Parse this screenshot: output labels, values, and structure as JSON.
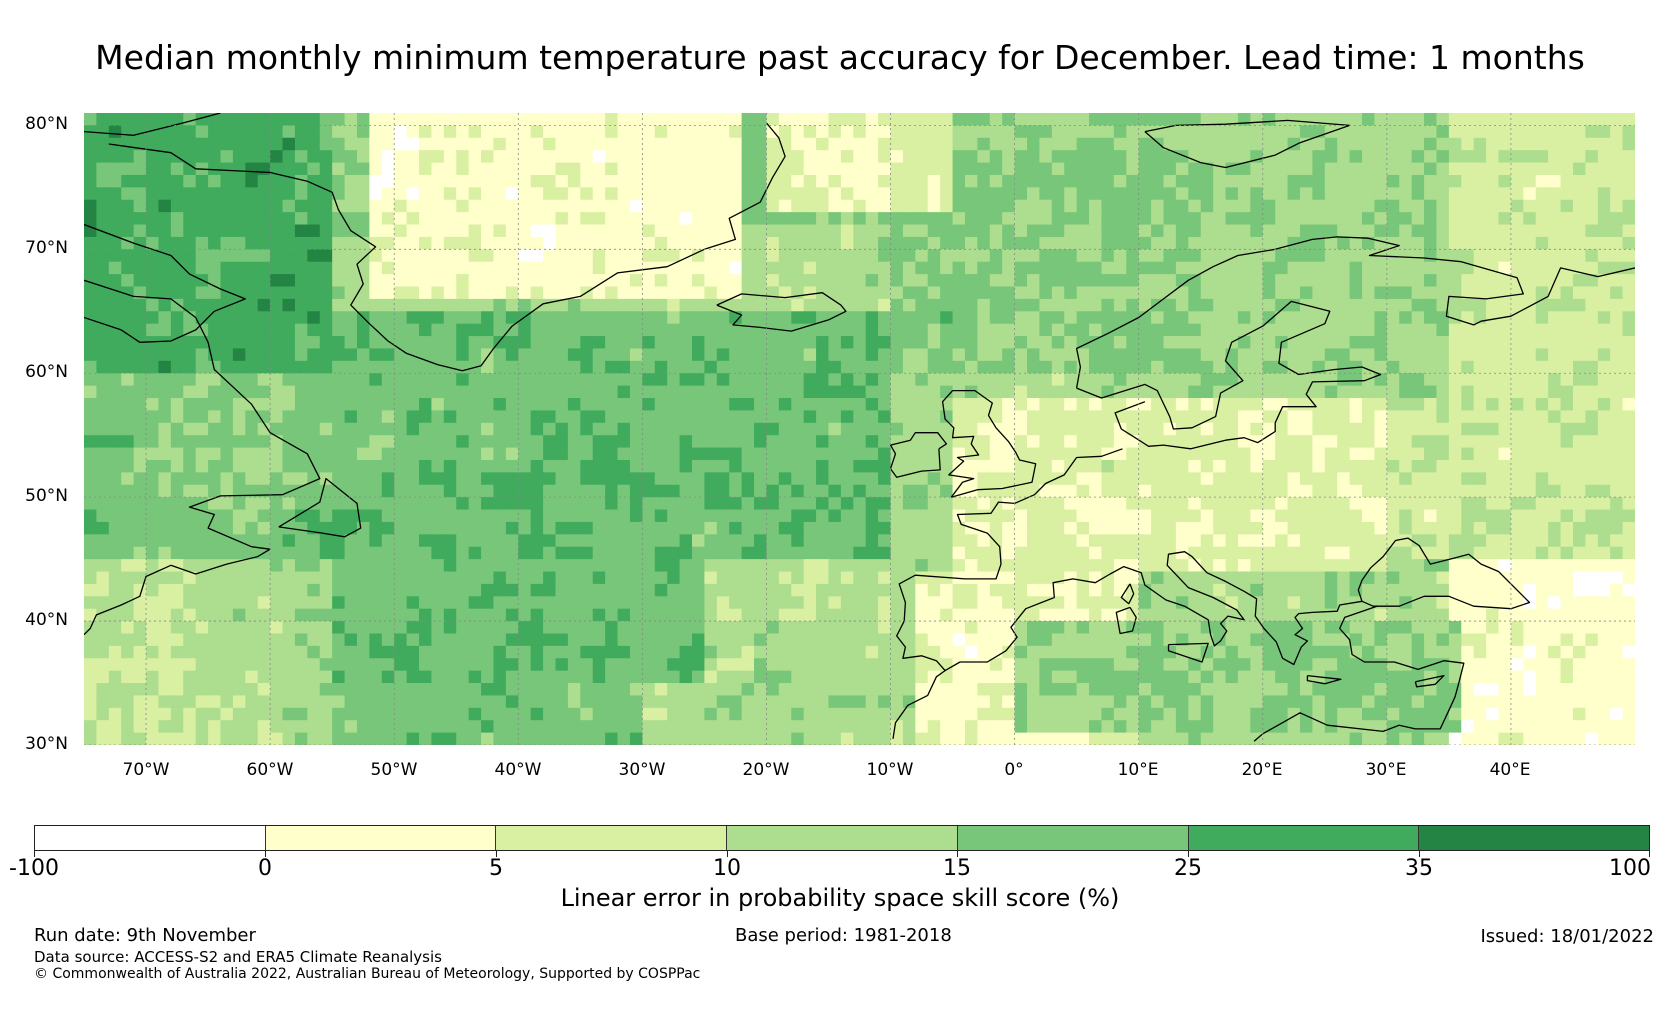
{
  "title": "Median monthly minimum temperature past accuracy for December. Lead time: 1 months",
  "map": {
    "region": "North Atlantic and Europe",
    "lat_range": [
      30,
      81
    ],
    "lon_range": [
      -75,
      50
    ],
    "lat_labels": [
      "80°N",
      "70°N",
      "60°N",
      "50°N",
      "40°N",
      "30°N"
    ],
    "lon_labels": [
      "70°W",
      "60°W",
      "50°W",
      "40°W",
      "30°W",
      "20°W",
      "10°W",
      "0°",
      "10°E",
      "20°E",
      "30°E",
      "40°E"
    ],
    "ocean_color": "#78c679",
    "land_color": "#d9f0a3",
    "coastline_color": "#000000",
    "grid_color": "#888888"
  },
  "colorbar": {
    "title": "Linear error in probability space skill score (%)",
    "tick_labels": [
      "-100",
      "0",
      "5",
      "10",
      "15",
      "25",
      "35",
      "100"
    ],
    "bins": [
      {
        "range": "-100 to 0",
        "color": "#ffffff"
      },
      {
        "range": "0 to 5",
        "color": "#ffffcc"
      },
      {
        "range": "5 to 10",
        "color": "#d9f0a3"
      },
      {
        "range": "10 to 15",
        "color": "#addd8e"
      },
      {
        "range": "15 to 25",
        "color": "#78c679"
      },
      {
        "range": "25 to 35",
        "color": "#41ab5d"
      },
      {
        "range": "35 to 100",
        "color": "#238443"
      }
    ]
  },
  "footer": {
    "run_date": "Run date: 9th November",
    "base_period": "Base period: 1981-2018",
    "issued": "Issued: 18/01/2022",
    "data_source": "Data source: ACCESS-S2 and ERA5 Climate Reanalysis",
    "copyright": "© Commonwealth of Australia 2022, Australian Bureau of Meteorology, Supported by COSPPac"
  }
}
